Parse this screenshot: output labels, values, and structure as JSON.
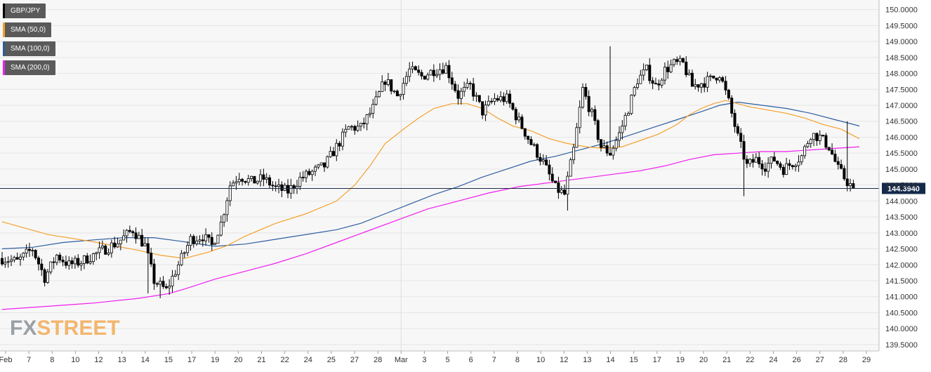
{
  "symbol": "GBP/JPY",
  "logo": {
    "part1": "FX",
    "part2": "STREET"
  },
  "last_price_label": "144.3940",
  "colors": {
    "bull": "#ffffff",
    "bear": "#000000",
    "sma50": "#f5a12b",
    "sma100": "#2e5e9f",
    "sma200": "#f01ef0",
    "last_line": "#1c2b4a",
    "price_tag_bg": "#152a4a",
    "grid": "#e6e6e6",
    "plot_bg": "#f7f7f7"
  },
  "legend": [
    {
      "label": "GBP/JPY",
      "color": "#000000"
    },
    {
      "label": "SMA (50,0)",
      "color": "#f5a12b"
    },
    {
      "label": "SMA (100,0)",
      "color": "#2e5e9f"
    },
    {
      "label": "SMA (200,0)",
      "color": "#f01ef0"
    }
  ],
  "chart_data": {
    "type": "candlestick",
    "symbol": "GBP/JPY",
    "timeframe": "hourly (approx.)",
    "ylim": [
      139.3,
      150.3
    ],
    "y_ticks": [
      "139.5000",
      "140.0000",
      "140.5000",
      "141.0000",
      "141.5000",
      "142.0000",
      "142.5000",
      "143.0000",
      "143.5000",
      "144.0000",
      "144.5000",
      "145.0000",
      "145.5000",
      "146.0000",
      "146.5000",
      "147.0000",
      "147.5000",
      "148.0000",
      "148.5000",
      "149.0000",
      "149.5000",
      "150.0000"
    ],
    "x_ticks": [
      "Feb",
      "7",
      "8",
      "10",
      "12",
      "13",
      "14",
      "15",
      "17",
      "19",
      "20",
      "21",
      "22",
      "24",
      "25",
      "27",
      "28",
      "Mar",
      "3",
      "5",
      "6",
      "7",
      "8",
      "10",
      "12",
      "13",
      "14",
      "15",
      "17",
      "19",
      "20",
      "21",
      "22",
      "24",
      "26",
      "27",
      "28",
      "29"
    ],
    "last_price": 144.394,
    "anchors": [
      {
        "i": 0,
        "p": 142.2
      },
      {
        "i": 5,
        "p": 142.1
      },
      {
        "i": 10,
        "p": 142.5
      },
      {
        "i": 14,
        "p": 141.6
      },
      {
        "i": 18,
        "p": 142.3
      },
      {
        "i": 22,
        "p": 142.0
      },
      {
        "i": 26,
        "p": 142.1
      },
      {
        "i": 32,
        "p": 142.4
      },
      {
        "i": 38,
        "p": 142.7
      },
      {
        "i": 43,
        "p": 143.1
      },
      {
        "i": 47,
        "p": 142.6
      },
      {
        "i": 50,
        "p": 141.5
      },
      {
        "i": 54,
        "p": 141.2
      },
      {
        "i": 58,
        "p": 142.0
      },
      {
        "i": 62,
        "p": 142.8
      },
      {
        "i": 66,
        "p": 142.9
      },
      {
        "i": 69,
        "p": 142.6
      },
      {
        "i": 72,
        "p": 143.3
      },
      {
        "i": 75,
        "p": 144.5
      },
      {
        "i": 78,
        "p": 144.8
      },
      {
        "i": 82,
        "p": 144.6
      },
      {
        "i": 86,
        "p": 144.7
      },
      {
        "i": 90,
        "p": 144.4
      },
      {
        "i": 94,
        "p": 144.3
      },
      {
        "i": 98,
        "p": 144.7
      },
      {
        "i": 102,
        "p": 144.9
      },
      {
        "i": 106,
        "p": 145.1
      },
      {
        "i": 110,
        "p": 145.7
      },
      {
        "i": 114,
        "p": 146.3
      },
      {
        "i": 118,
        "p": 146.3
      },
      {
        "i": 122,
        "p": 146.9
      },
      {
        "i": 126,
        "p": 147.8
      },
      {
        "i": 130,
        "p": 147.3
      },
      {
        "i": 134,
        "p": 148.1
      },
      {
        "i": 138,
        "p": 147.9
      },
      {
        "i": 142,
        "p": 148.1
      },
      {
        "i": 146,
        "p": 148.2
      },
      {
        "i": 150,
        "p": 147.3
      },
      {
        "i": 154,
        "p": 147.6
      },
      {
        "i": 158,
        "p": 146.8
      },
      {
        "i": 162,
        "p": 147.2
      },
      {
        "i": 166,
        "p": 147.2
      },
      {
        "i": 170,
        "p": 146.5
      },
      {
        "i": 174,
        "p": 145.8
      },
      {
        "i": 178,
        "p": 145.2
      },
      {
        "i": 182,
        "p": 144.4
      },
      {
        "i": 185,
        "p": 144.2
      },
      {
        "i": 188,
        "p": 145.6
      },
      {
        "i": 191,
        "p": 147.5
      },
      {
        "i": 194,
        "p": 146.7
      },
      {
        "i": 197,
        "p": 145.7
      },
      {
        "i": 200,
        "p": 145.5
      },
      {
        "i": 203,
        "p": 146.1
      },
      {
        "i": 206,
        "p": 146.9
      },
      {
        "i": 209,
        "p": 147.8
      },
      {
        "i": 212,
        "p": 148.1
      },
      {
        "i": 215,
        "p": 147.6
      },
      {
        "i": 218,
        "p": 148.1
      },
      {
        "i": 221,
        "p": 148.3
      },
      {
        "i": 224,
        "p": 148.3
      },
      {
        "i": 227,
        "p": 147.6
      },
      {
        "i": 230,
        "p": 147.7
      },
      {
        "i": 233,
        "p": 147.8
      },
      {
        "i": 236,
        "p": 148.0
      },
      {
        "i": 239,
        "p": 147.1
      },
      {
        "i": 242,
        "p": 146.0
      },
      {
        "i": 245,
        "p": 145.1
      },
      {
        "i": 248,
        "p": 145.3
      },
      {
        "i": 251,
        "p": 145.1
      },
      {
        "i": 254,
        "p": 145.3
      },
      {
        "i": 257,
        "p": 145.0
      },
      {
        "i": 260,
        "p": 145.2
      },
      {
        "i": 263,
        "p": 145.4
      },
      {
        "i": 266,
        "p": 146.1
      },
      {
        "i": 269,
        "p": 146.0
      },
      {
        "i": 272,
        "p": 145.7
      },
      {
        "i": 275,
        "p": 145.0
      },
      {
        "i": 278,
        "p": 144.6
      },
      {
        "i": 280,
        "p": 144.394
      }
    ],
    "series": [
      {
        "name": "SMA (50,0)"
      },
      {
        "name": "SMA (100,0)"
      },
      {
        "name": "SMA (200,0)"
      }
    ],
    "sma_curves": {
      "sma50": [
        [
          0,
          143.35
        ],
        [
          15,
          142.95
        ],
        [
          30,
          142.72
        ],
        [
          45,
          142.45
        ],
        [
          52,
          142.3
        ],
        [
          60,
          142.2
        ],
        [
          68,
          142.4
        ],
        [
          74,
          142.6
        ],
        [
          80,
          142.9
        ],
        [
          90,
          143.3
        ],
        [
          100,
          143.6
        ],
        [
          110,
          144.0
        ],
        [
          116,
          144.5
        ],
        [
          121,
          145.1
        ],
        [
          126,
          145.8
        ],
        [
          132,
          146.25
        ],
        [
          137,
          146.6
        ],
        [
          142,
          146.9
        ],
        [
          148,
          147.05
        ],
        [
          153,
          147.05
        ],
        [
          158,
          146.9
        ],
        [
          163,
          146.6
        ],
        [
          168,
          146.35
        ],
        [
          174,
          146.2
        ],
        [
          180,
          145.95
        ],
        [
          186,
          145.8
        ],
        [
          192,
          145.7
        ],
        [
          198,
          145.65
        ],
        [
          204,
          145.7
        ],
        [
          210,
          145.9
        ],
        [
          216,
          146.1
        ],
        [
          222,
          146.4
        ],
        [
          226,
          146.7
        ],
        [
          230,
          146.9
        ],
        [
          234,
          147.05
        ],
        [
          238,
          147.15
        ],
        [
          242,
          147.05
        ],
        [
          246,
          146.95
        ],
        [
          252,
          146.85
        ],
        [
          258,
          146.75
        ],
        [
          264,
          146.6
        ],
        [
          270,
          146.4
        ],
        [
          276,
          146.25
        ],
        [
          282,
          145.95
        ]
      ],
      "sma100": [
        [
          0,
          142.5
        ],
        [
          10,
          142.55
        ],
        [
          20,
          142.7
        ],
        [
          30,
          142.78
        ],
        [
          40,
          142.85
        ],
        [
          50,
          142.85
        ],
        [
          60,
          142.72
        ],
        [
          70,
          142.58
        ],
        [
          80,
          142.65
        ],
        [
          90,
          142.8
        ],
        [
          100,
          142.95
        ],
        [
          110,
          143.1
        ],
        [
          118,
          143.3
        ],
        [
          126,
          143.6
        ],
        [
          134,
          143.9
        ],
        [
          142,
          144.2
        ],
        [
          150,
          144.45
        ],
        [
          158,
          144.75
        ],
        [
          166,
          145.0
        ],
        [
          174,
          145.25
        ],
        [
          182,
          145.4
        ],
        [
          190,
          145.6
        ],
        [
          198,
          145.8
        ],
        [
          206,
          146.05
        ],
        [
          214,
          146.3
        ],
        [
          222,
          146.55
        ],
        [
          230,
          146.8
        ],
        [
          236,
          147.0
        ],
        [
          242,
          147.1
        ],
        [
          250,
          147.0
        ],
        [
          258,
          146.9
        ],
        [
          266,
          146.75
        ],
        [
          274,
          146.55
        ],
        [
          282,
          146.35
        ]
      ],
      "sma200": [
        [
          0,
          140.6
        ],
        [
          15,
          140.7
        ],
        [
          30,
          140.8
        ],
        [
          45,
          140.95
        ],
        [
          55,
          141.1
        ],
        [
          62,
          141.3
        ],
        [
          70,
          141.55
        ],
        [
          80,
          141.8
        ],
        [
          90,
          142.05
        ],
        [
          100,
          142.35
        ],
        [
          110,
          142.7
        ],
        [
          120,
          143.05
        ],
        [
          130,
          143.4
        ],
        [
          140,
          143.75
        ],
        [
          150,
          144.0
        ],
        [
          160,
          144.25
        ],
        [
          170,
          144.45
        ],
        [
          178,
          144.55
        ],
        [
          186,
          144.65
        ],
        [
          194,
          144.75
        ],
        [
          202,
          144.85
        ],
        [
          210,
          144.95
        ],
        [
          218,
          145.1
        ],
        [
          226,
          145.3
        ],
        [
          234,
          145.45
        ],
        [
          242,
          145.5
        ],
        [
          250,
          145.55
        ],
        [
          258,
          145.55
        ],
        [
          266,
          145.6
        ],
        [
          274,
          145.65
        ],
        [
          282,
          145.7
        ]
      ]
    }
  }
}
